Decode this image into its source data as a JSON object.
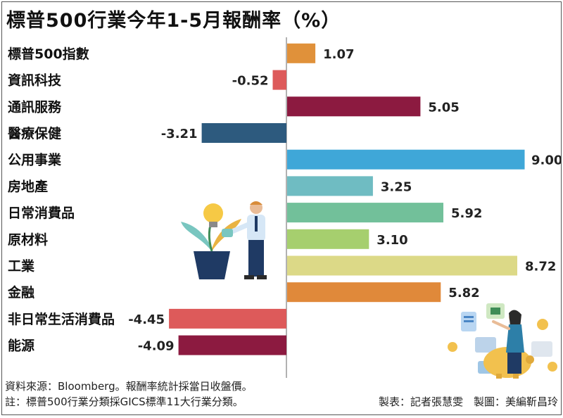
{
  "chart_data": {
    "type": "bar",
    "orientation": "horizontal",
    "title": "標普500行業今年1-5月報酬率（%）",
    "categories": [
      "標普500指數",
      "資訊科技",
      "通訊服務",
      "醫療保健",
      "公用事業",
      "房地產",
      "日常消費品",
      "原材料",
      "工業",
      "金融",
      "非日常生活消費品",
      "能源"
    ],
    "values": [
      1.07,
      -0.52,
      5.05,
      -3.21,
      9.0,
      3.25,
      5.92,
      3.1,
      8.72,
      5.82,
      -4.45,
      -4.09
    ],
    "value_labels": [
      "1.07",
      "-0.52",
      "5.05",
      "-3.21",
      "9.00",
      "3.25",
      "5.92",
      "3.10",
      "8.72",
      "5.82",
      "-4.45",
      "-4.09"
    ],
    "colors": [
      "#e0913a",
      "#dd5a5a",
      "#8c1a40",
      "#2d5a7e",
      "#3fa7d8",
      "#6fbcc2",
      "#72c09a",
      "#a6cf6e",
      "#dcd987",
      "#e0893a",
      "#dd5a5a",
      "#8c1a40"
    ],
    "xlim": [
      -5.2,
      9.0
    ],
    "grid": false,
    "legend": "none"
  },
  "footer": {
    "source": "資料來源：Bloomberg。報酬率統計採當日收盤價。",
    "note": "註：標普500行業分類採GICS標準11大行業分類。",
    "credit": "製表：記者張慧雯　製圖：美編靳昌玲"
  },
  "illustrations": [
    "businessman-watering-plant-icon",
    "woman-piggy-bank-icon"
  ]
}
